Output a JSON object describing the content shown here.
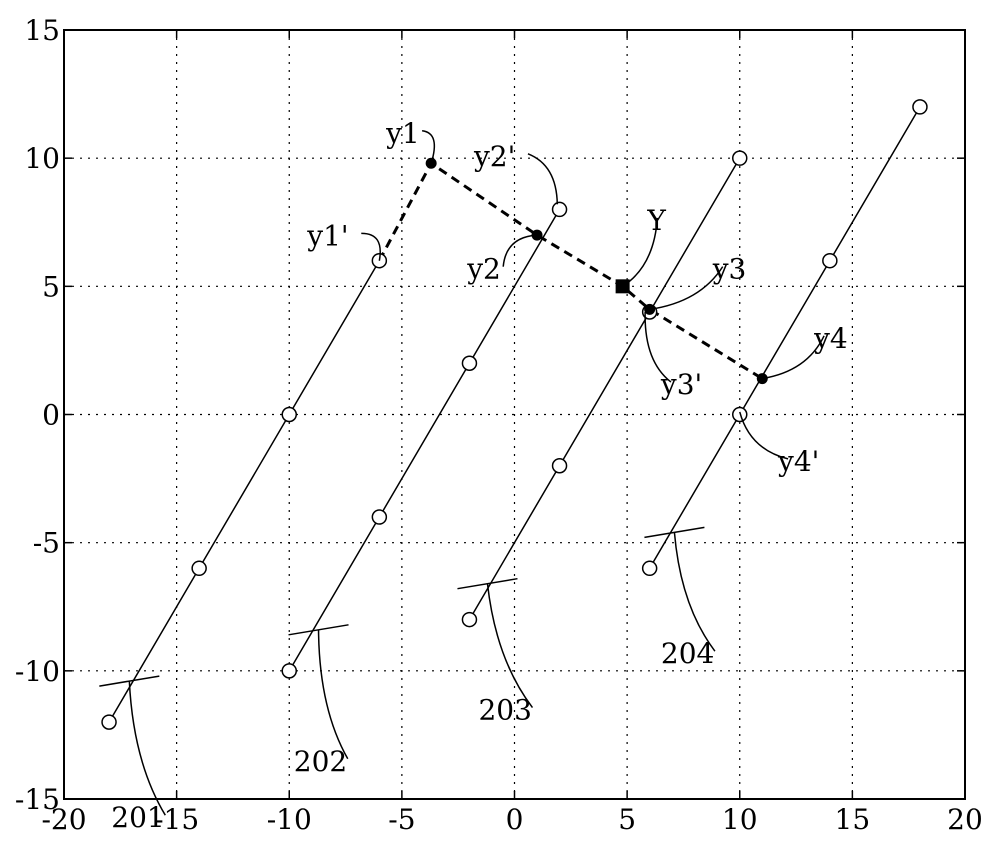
{
  "chart_data": {
    "type": "line",
    "xlim": [
      -20,
      20
    ],
    "ylim": [
      -15,
      15
    ],
    "xticks": [
      -20,
      -15,
      -10,
      -5,
      0,
      5,
      10,
      15,
      20
    ],
    "yticks": [
      -15,
      -10,
      -5,
      0,
      5,
      10,
      15
    ],
    "xtick_labels": [
      "-20",
      "-15",
      "-10",
      "-5",
      "0",
      "5",
      "10",
      "15",
      "20"
    ],
    "ytick_labels": [
      "-15",
      "-10",
      "-5",
      "0",
      "5",
      "10",
      "15"
    ],
    "grid": true,
    "series": [
      {
        "x": [
          -18,
          -14,
          -10,
          -6
        ],
        "y": [
          -12,
          -6,
          0,
          6
        ],
        "marker": "open-circle"
      },
      {
        "x": [
          -10,
          -6,
          -2,
          2
        ],
        "y": [
          -10,
          -4,
          2,
          8
        ],
        "marker": "open-circle"
      },
      {
        "x": [
          -2,
          2,
          6,
          10
        ],
        "y": [
          -8,
          -2,
          4,
          10
        ],
        "marker": "open-circle"
      },
      {
        "x": [
          6,
          10,
          14,
          18
        ],
        "y": [
          -6,
          0,
          6,
          12
        ],
        "marker": "open-circle"
      }
    ],
    "dashed_path": {
      "x": [
        -6,
        -3.7,
        1,
        4.8,
        6,
        11
      ],
      "y": [
        6,
        9.8,
        7,
        5,
        4.1,
        1.4
      ]
    },
    "points": [
      {
        "name": "y1",
        "x": -3.7,
        "y": 9.8,
        "marker": "filled-dot"
      },
      {
        "name": "y2",
        "x": 1,
        "y": 7,
        "marker": "filled-dot"
      },
      {
        "name": "Y",
        "x": 4.8,
        "y": 5,
        "marker": "filled-square"
      },
      {
        "name": "y3",
        "x": 6,
        "y": 4.1,
        "marker": "filled-dot"
      },
      {
        "name": "y4",
        "x": 11,
        "y": 1.4,
        "marker": "filled-dot"
      }
    ],
    "annotations": [
      {
        "text": "y1",
        "tx": -5.7,
        "ty": 10.6,
        "ax": -3.7,
        "ay": 9.8
      },
      {
        "text": "y1'",
        "tx": -9.2,
        "ty": 6.6,
        "ax": -6,
        "ay": 6
      },
      {
        "text": "y2'",
        "tx": -1.8,
        "ty": 9.7,
        "ax": 1.9,
        "ay": 8.2
      },
      {
        "text": "y2",
        "tx": -2.1,
        "ty": 5.3,
        "ax": 1,
        "ay": 7
      },
      {
        "text": "Y",
        "tx": 5.9,
        "ty": 7.2,
        "ax": 4.8,
        "ay": 5
      },
      {
        "text": "y3",
        "tx": 8.8,
        "ty": 5.3,
        "ax": 6,
        "ay": 4.1
      },
      {
        "text": "y3'",
        "tx": 6.5,
        "ty": 0.8,
        "ax": 5.8,
        "ay": 4
      },
      {
        "text": "y4",
        "tx": 13.3,
        "ty": 2.6,
        "ax": 11,
        "ay": 1.4
      },
      {
        "text": "y4'",
        "tx": 11.7,
        "ty": -2.2,
        "ax": 10,
        "ay": 0.1
      },
      {
        "text": "201",
        "tx": -17.9,
        "ty": -16.1,
        "ax": -17.1,
        "ay": -10.4
      },
      {
        "text": "202",
        "tx": -9.8,
        "ty": -13.9,
        "ax": -8.7,
        "ay": -8.4
      },
      {
        "text": "203",
        "tx": -1.6,
        "ty": -11.9,
        "ax": -1.2,
        "ay": -6.6
      },
      {
        "text": "204",
        "tx": 6.5,
        "ty": -9.7,
        "ax": 7.1,
        "ay": -4.6
      }
    ],
    "tick_marks": [
      {
        "x": -17.1,
        "y": -10.4
      },
      {
        "x": -8.7,
        "y": -8.4
      },
      {
        "x": -1.2,
        "y": -6.6
      },
      {
        "x": 7.1,
        "y": -4.6
      }
    ]
  }
}
